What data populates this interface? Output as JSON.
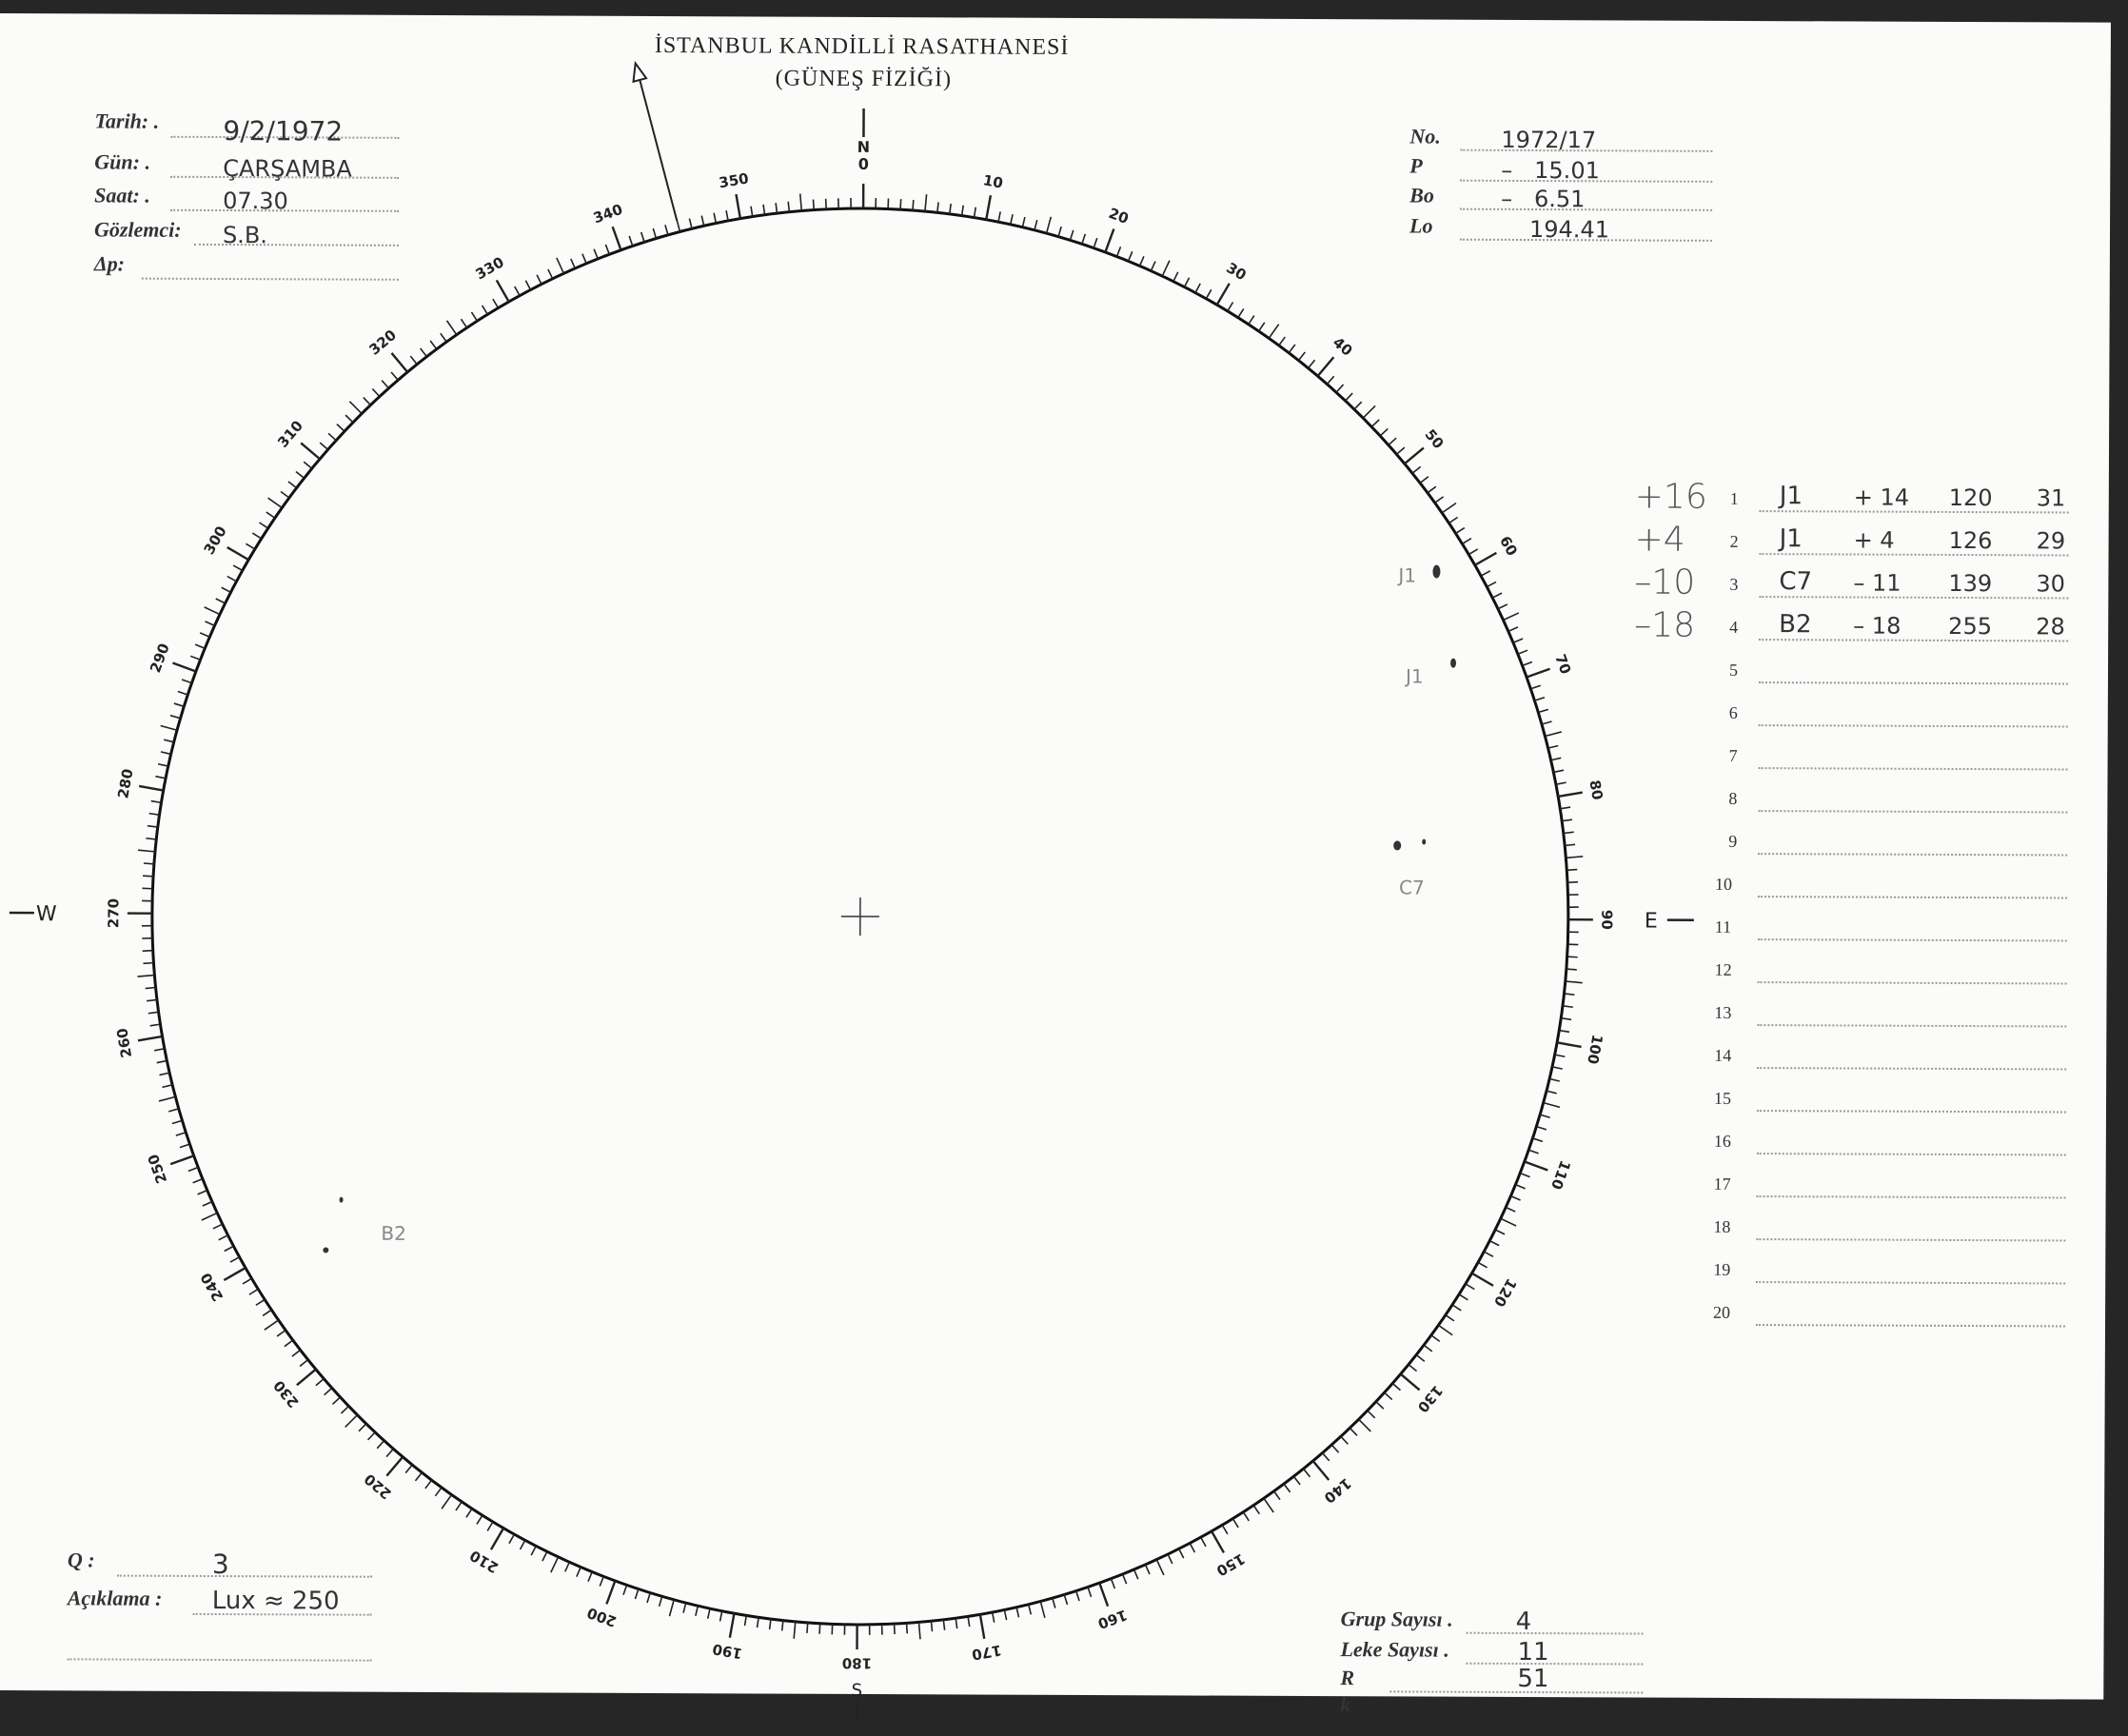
{
  "header": {
    "institution": "İSTANBUL KANDİLLİ RASATHANESİ",
    "department": "(GÜNEŞ FİZİĞİ)"
  },
  "left_fields": [
    {
      "label": "Tarih: .",
      "value": "9/2/1972"
    },
    {
      "label": "Gün: .",
      "value": "ÇARŞAMBA"
    },
    {
      "label": "Saat: .",
      "value": "07.30"
    },
    {
      "label": "Gözlemci:",
      "value": "S.B."
    },
    {
      "label": "Δp:",
      "value": ""
    }
  ],
  "right_fields": [
    {
      "label": "No.",
      "value": "1972/17"
    },
    {
      "label": "P",
      "value": "–   15.01"
    },
    {
      "label": "Bo",
      "value": "–   6.51"
    },
    {
      "label": "Lo",
      "value": "194.41"
    }
  ],
  "dial": {
    "zero_label": "0",
    "compass": {
      "north": "N",
      "east": "E",
      "south": "S",
      "west": "W"
    },
    "labels": [
      "10",
      "20",
      "30",
      "40",
      "50",
      "60",
      "70",
      "80",
      "90",
      "100",
      "110",
      "120",
      "130",
      "140",
      "150",
      "160",
      "170",
      "180",
      "190",
      "200",
      "210",
      "220",
      "230",
      "240",
      "250",
      "260",
      "270",
      "280",
      "290",
      "300",
      "310",
      "320",
      "330",
      "340",
      "350"
    ],
    "p_angle": -15.01
  },
  "sunspots": [
    {
      "label": "J1"
    },
    {
      "label": "J1"
    },
    {
      "label": "C7"
    },
    {
      "label": "B2"
    }
  ],
  "groups": [
    {
      "note": "+16",
      "n": "1",
      "type": "J1",
      "lat": "+ 14",
      "lon": "120",
      "count": "31"
    },
    {
      "note": "+4",
      "n": "2",
      "type": "J1",
      "lat": "+ 4",
      "lon": "126",
      "count": "29"
    },
    {
      "note": "–10",
      "n": "3",
      "type": "C7",
      "lat": "– 11",
      "lon": "139",
      "count": "30"
    },
    {
      "note": "–18",
      "n": "4",
      "type": "B2",
      "lat": "– 18",
      "lon": "255",
      "count": "28"
    },
    {
      "n": "5"
    },
    {
      "n": "6"
    },
    {
      "n": "7"
    },
    {
      "n": "8"
    },
    {
      "n": "9"
    },
    {
      "n": "10"
    },
    {
      "n": "11"
    },
    {
      "n": "12"
    },
    {
      "n": "13"
    },
    {
      "n": "14"
    },
    {
      "n": "15"
    },
    {
      "n": "16"
    },
    {
      "n": "17"
    },
    {
      "n": "18"
    },
    {
      "n": "19"
    },
    {
      "n": "20"
    }
  ],
  "bottom_left": {
    "q_label": "Q :",
    "q_value": "3",
    "note_label": "Açıklama :",
    "note_value": "Lux ≈ 250"
  },
  "bottom_right": [
    {
      "label": "Grup Sayısı .",
      "value": "4"
    },
    {
      "label": "Leke Sayısı .",
      "value": "11"
    },
    {
      "label": "R",
      "value": "51"
    },
    {
      "label": "k",
      "value": ""
    }
  ]
}
